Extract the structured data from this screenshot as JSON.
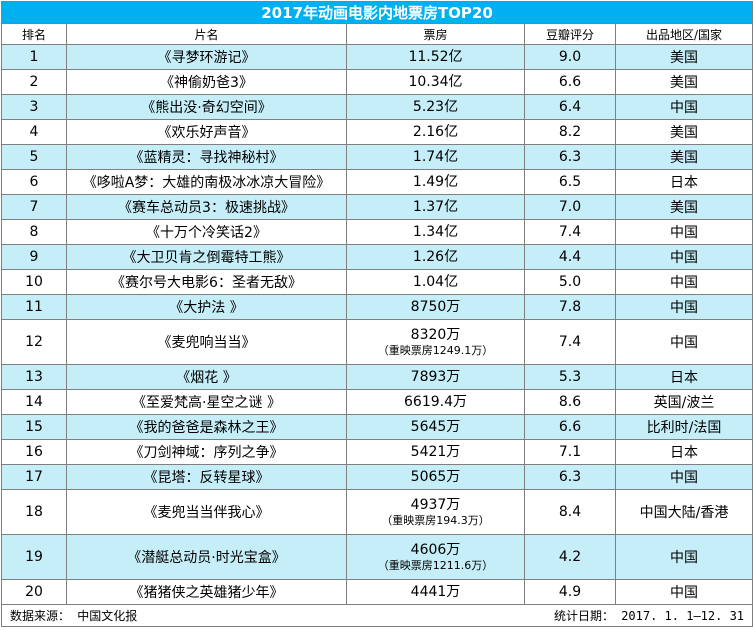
{
  "title": "2017年动画电影内地票房TOP20",
  "headers": {
    "rank": "排名",
    "film": "片名",
    "box": "票房",
    "score": "豆瓣评分",
    "region": "出品地区/国家"
  },
  "rows": [
    {
      "rank": "1",
      "film": "《寻梦环游记》",
      "box": "11.52亿",
      "note": "",
      "score": "9.0",
      "region": "美国"
    },
    {
      "rank": "2",
      "film": "《神偷奶爸3》",
      "box": "10.34亿",
      "note": "",
      "score": "6.6",
      "region": "美国"
    },
    {
      "rank": "3",
      "film": "《熊出没·奇幻空间》",
      "box": "5.23亿",
      "note": "",
      "score": "6.4",
      "region": "中国"
    },
    {
      "rank": "4",
      "film": "《欢乐好声音》",
      "box": "2.16亿",
      "note": "",
      "score": "8.2",
      "region": "美国"
    },
    {
      "rank": "5",
      "film": "《蓝精灵：寻找神秘村》",
      "box": "1.74亿",
      "note": "",
      "score": "6.3",
      "region": "美国"
    },
    {
      "rank": "6",
      "film": "《哆啦A梦：大雄的南极冰冰凉大冒险》",
      "box": "1.49亿",
      "note": "",
      "score": "6.5",
      "region": "日本"
    },
    {
      "rank": "7",
      "film": "《赛车总动员3：极速挑战》",
      "box": "1.37亿",
      "note": "",
      "score": "7.0",
      "region": "美国"
    },
    {
      "rank": "8",
      "film": "《十万个冷笑话2》",
      "box": "1.34亿",
      "note": "",
      "score": "7.4",
      "region": "中国"
    },
    {
      "rank": "9",
      "film": "《大卫贝肯之倒霉特工熊》",
      "box": "1.26亿",
      "note": "",
      "score": "4.4",
      "region": "中国"
    },
    {
      "rank": "10",
      "film": "《赛尔号大电影6：圣者无敌》",
      "box": "1.04亿",
      "note": "",
      "score": "5.0",
      "region": "中国"
    },
    {
      "rank": "11",
      "film": "《大护法 》",
      "box": "8750万",
      "note": "",
      "score": "7.8",
      "region": "中国"
    },
    {
      "rank": "12",
      "film": "《麦兜响当当》",
      "box": "8320万",
      "note": "（重映票房1249.1万）",
      "score": "7.4",
      "region": "中国"
    },
    {
      "rank": "13",
      "film": "《烟花 》",
      "box": "7893万",
      "note": "",
      "score": "5.3",
      "region": "日本"
    },
    {
      "rank": "14",
      "film": "《至爱梵高·星空之谜 》",
      "box": "6619.4万",
      "note": "",
      "score": "8.6",
      "region": "英国/波兰"
    },
    {
      "rank": "15",
      "film": "《我的爸爸是森林之王》",
      "box": "5645万",
      "note": "",
      "score": "6.6",
      "region": "比利时/法国"
    },
    {
      "rank": "16",
      "film": "《刀剑神域：序列之争》",
      "box": "5421万",
      "note": "",
      "score": "7.1",
      "region": "日本"
    },
    {
      "rank": "17",
      "film": "《昆塔：反转星球》",
      "box": "5065万",
      "note": "",
      "score": "6.3",
      "region": "中国"
    },
    {
      "rank": "18",
      "film": "《麦兜当当伴我心》",
      "box": "4937万",
      "note": "（重映票房194.3万）",
      "score": "8.4",
      "region": "中国大陆/香港"
    },
    {
      "rank": "19",
      "film": "《潜艇总动员·时光宝盒》",
      "box": "4606万",
      "note": "（重映票房1211.6万）",
      "score": "4.2",
      "region": "中国"
    },
    {
      "rank": "20",
      "film": "《猪猪侠之英雄猪少年》",
      "box": "4441万",
      "note": "",
      "score": "4.9",
      "region": "中国"
    }
  ],
  "footer": {
    "source": "数据来源： 中国文化报",
    "date": "统计日期： 2017. 1. 1—12. 31"
  },
  "colors": {
    "title_bg": "#00b0f0",
    "row_alt_bg": "#c5eef8",
    "border": "#7f7f7f"
  }
}
